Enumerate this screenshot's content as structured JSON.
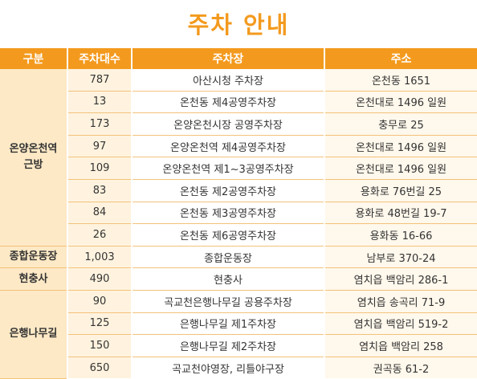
{
  "title": "주차 안내",
  "colors": {
    "accent": "#f39a1e",
    "category_bg": "#fde9c6"
  },
  "headers": {
    "category": "구분",
    "count": "주차대수",
    "lot": "주차장",
    "address": "주소"
  },
  "groups": [
    {
      "name": "온양온천역\n근방",
      "rows": [
        {
          "count": "787",
          "lot": "아산시청 주차장",
          "address": "온천동 1651"
        },
        {
          "count": "13",
          "lot": "온천동 제4공영주차장",
          "address": "온천대로 1496 일원"
        },
        {
          "count": "173",
          "lot": "온양온천시장 공영주차장",
          "address": "충무로 25"
        },
        {
          "count": "97",
          "lot": "온양온천역 제4공영주차장",
          "address": "온천대로 1496 일원"
        },
        {
          "count": "109",
          "lot": "온양온천역 제1~3공영주차장",
          "address": "온천대로 1496 일원"
        },
        {
          "count": "83",
          "lot": "온천동 제2공영주차장",
          "address": "용화로 76번길 25"
        },
        {
          "count": "84",
          "lot": "온천동 제3공영주차장",
          "address": "용화로 48번길 19-7"
        },
        {
          "count": "26",
          "lot": "온천동 제6공영주차장",
          "address": "용화동 16-66"
        }
      ]
    },
    {
      "name": "종합운동장",
      "rows": [
        {
          "count": "1,003",
          "lot": "종합운동장",
          "address": "남부로 370-24"
        }
      ]
    },
    {
      "name": "현충사",
      "rows": [
        {
          "count": "490",
          "lot": "현충사",
          "address": "염치읍 백암리 286-1"
        }
      ]
    },
    {
      "name": "은행나무길",
      "rows": [
        {
          "count": "90",
          "lot": "곡교천은행나무길 공용주차장",
          "address": "염치읍 송곡리 71-9"
        },
        {
          "count": "125",
          "lot": "은행나무길 제1주차장",
          "address": "염치읍 백암리 519-2"
        },
        {
          "count": "150",
          "lot": "은행나무길 제2주차장",
          "address": "염치읍 백암리 258"
        },
        {
          "count": "650",
          "lot": "곡교천야영장, 리틀야구장",
          "address": "권곡동 61-2"
        }
      ]
    }
  ]
}
